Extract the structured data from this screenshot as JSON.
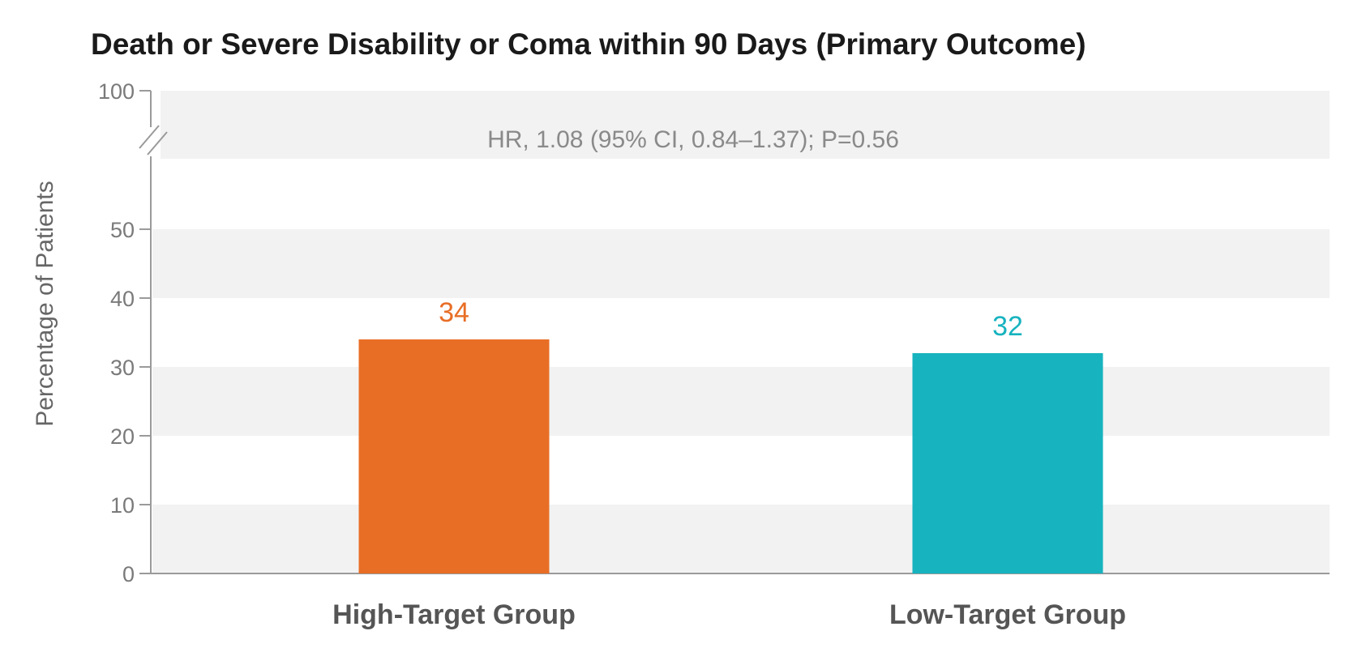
{
  "chart_data": {
    "type": "bar",
    "title": "Death or Severe Disability or Coma within 90 Days (Primary Outcome)",
    "xlabel": "",
    "ylabel": "Percentage of Patients",
    "categories": [
      "High-Target Group",
      "Low-Target Group"
    ],
    "values": [
      34,
      32
    ],
    "data_labels": [
      "34",
      "32"
    ],
    "colors": [
      "#e86e26",
      "#17b3bf"
    ],
    "ylim": [
      0,
      100
    ],
    "axis_break": true,
    "yticks": [
      0,
      10,
      20,
      30,
      40,
      50,
      100
    ],
    "ytick_labels": [
      "0",
      "10",
      "20",
      "30",
      "40",
      "50",
      "100"
    ],
    "grid_bands": true,
    "annotation": "HR, 1.08 (95% CI, 0.84–1.37); P=0.56"
  }
}
